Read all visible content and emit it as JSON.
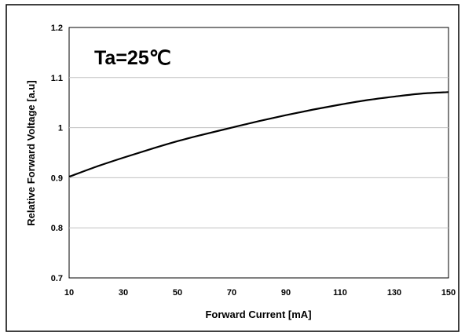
{
  "chart_data": {
    "type": "line",
    "title": "",
    "xlabel": "Forward Current [mA]",
    "ylabel": "Relative Forward Voltage [a.u]",
    "xlim": [
      10,
      150
    ],
    "ylim": [
      0.7,
      1.2
    ],
    "x_ticks": [
      10,
      30,
      50,
      70,
      90,
      110,
      130,
      150
    ],
    "y_ticks": [
      0.7,
      0.8,
      0.9,
      1.0,
      1.1,
      1.2
    ],
    "y_tick_labels": [
      "0.7",
      "0.8",
      "0.9",
      "1",
      "1.1",
      "1.2"
    ],
    "grid": "horizontal",
    "legend": "none",
    "annotation": "Ta=25℃",
    "line_color": "#000000",
    "grid_color": "#c0c0c0",
    "series": [
      {
        "x": [
          10,
          20,
          30,
          40,
          50,
          60,
          70,
          80,
          90,
          100,
          110,
          120,
          130,
          140,
          150
        ],
        "values": [
          0.902,
          0.922,
          0.94,
          0.957,
          0.973,
          0.987,
          1.0,
          1.013,
          1.025,
          1.036,
          1.046,
          1.055,
          1.062,
          1.068,
          1.071
        ]
      }
    ]
  }
}
